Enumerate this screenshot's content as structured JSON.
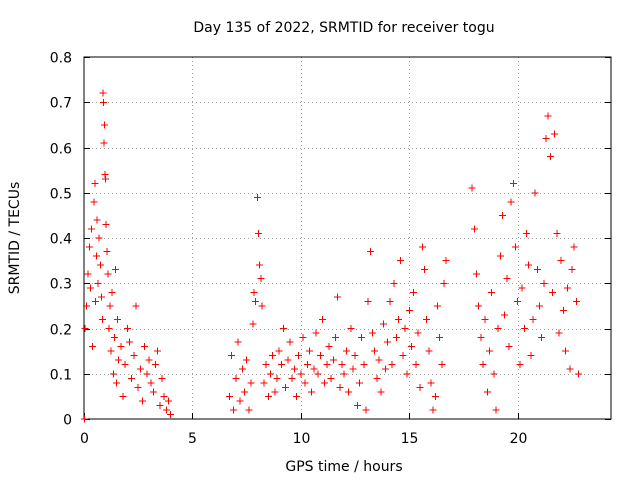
{
  "chart_data": {
    "type": "scatter",
    "title": "Day 135 of 2022, SRMTID for receiver togu",
    "xlabel": "GPS time / hours",
    "ylabel": "SRMTID / TECUs",
    "xlim": [
      0,
      24.3
    ],
    "ylim": [
      0,
      0.8
    ],
    "xticks": [
      0,
      5,
      10,
      15,
      20
    ],
    "yticks": [
      0,
      0.1,
      0.2,
      0.3,
      0.4,
      0.5,
      0.6,
      0.7,
      0.8
    ],
    "xtick_labels": [
      "0",
      "5",
      "10",
      "15",
      "20"
    ],
    "ytick_labels": [
      "0",
      "0.1",
      "0.2",
      "0.3",
      "0.4",
      "0.5",
      "0.6",
      "0.7",
      "0.8"
    ],
    "grid": true,
    "marker": "+",
    "color": "#ff0000",
    "series": [
      {
        "name": "SRMTID",
        "points": [
          [
            0.02,
            0.0
          ],
          [
            0.05,
            0.2
          ],
          [
            0.12,
            0.25
          ],
          [
            0.18,
            0.32
          ],
          [
            0.25,
            0.38
          ],
          [
            0.3,
            0.29
          ],
          [
            0.35,
            0.42
          ],
          [
            0.4,
            0.16
          ],
          [
            0.45,
            0.48
          ],
          [
            0.5,
            0.52
          ],
          [
            0.52,
            0.26
          ],
          [
            0.58,
            0.36
          ],
          [
            0.6,
            0.44
          ],
          [
            0.65,
            0.3
          ],
          [
            0.7,
            0.4
          ],
          [
            0.75,
            0.34
          ],
          [
            0.8,
            0.27
          ],
          [
            0.85,
            0.22
          ],
          [
            0.88,
            0.72
          ],
          [
            0.9,
            0.7
          ],
          [
            0.92,
            0.61
          ],
          [
            0.95,
            0.65
          ],
          [
            0.97,
            0.54
          ],
          [
            1.0,
            0.53
          ],
          [
            1.02,
            0.43
          ],
          [
            1.05,
            0.37
          ],
          [
            1.1,
            0.32
          ],
          [
            1.15,
            0.2
          ],
          [
            1.2,
            0.25
          ],
          [
            1.25,
            0.15
          ],
          [
            1.3,
            0.28
          ],
          [
            1.35,
            0.1
          ],
          [
            1.4,
            0.18
          ],
          [
            1.45,
            0.33
          ],
          [
            1.5,
            0.08
          ],
          [
            1.55,
            0.22
          ],
          [
            1.6,
            0.13
          ],
          [
            1.7,
            0.16
          ],
          [
            1.8,
            0.05
          ],
          [
            1.9,
            0.12
          ],
          [
            2.0,
            0.2
          ],
          [
            2.1,
            0.17
          ],
          [
            2.2,
            0.09
          ],
          [
            2.3,
            0.14
          ],
          [
            2.4,
            0.25
          ],
          [
            2.5,
            0.07
          ],
          [
            2.6,
            0.11
          ],
          [
            2.7,
            0.04
          ],
          [
            2.8,
            0.16
          ],
          [
            2.9,
            0.1
          ],
          [
            3.0,
            0.13
          ],
          [
            3.1,
            0.08
          ],
          [
            3.2,
            0.06
          ],
          [
            3.3,
            0.12
          ],
          [
            3.4,
            0.15
          ],
          [
            3.5,
            0.03
          ],
          [
            3.6,
            0.09
          ],
          [
            3.7,
            0.05
          ],
          [
            3.8,
            0.02
          ],
          [
            3.9,
            0.04
          ],
          [
            4.0,
            0.01
          ],
          [
            6.7,
            0.05
          ],
          [
            6.8,
            0.14
          ],
          [
            6.9,
            0.02
          ],
          [
            7.0,
            0.09
          ],
          [
            7.1,
            0.17
          ],
          [
            7.2,
            0.04
          ],
          [
            7.3,
            0.11
          ],
          [
            7.4,
            0.06
          ],
          [
            7.5,
            0.13
          ],
          [
            7.6,
            0.02
          ],
          [
            7.7,
            0.08
          ],
          [
            7.8,
            0.21
          ],
          [
            7.85,
            0.28
          ],
          [
            7.9,
            0.26
          ],
          [
            8.0,
            0.49
          ],
          [
            8.05,
            0.41
          ],
          [
            8.1,
            0.34
          ],
          [
            8.15,
            0.31
          ],
          [
            8.2,
            0.25
          ],
          [
            8.3,
            0.08
          ],
          [
            8.4,
            0.12
          ],
          [
            8.5,
            0.05
          ],
          [
            8.6,
            0.1
          ],
          [
            8.7,
            0.14
          ],
          [
            8.8,
            0.06
          ],
          [
            8.9,
            0.09
          ],
          [
            9.0,
            0.15
          ],
          [
            9.1,
            0.12
          ],
          [
            9.2,
            0.2
          ],
          [
            9.3,
            0.07
          ],
          [
            9.4,
            0.13
          ],
          [
            9.5,
            0.17
          ],
          [
            9.6,
            0.09
          ],
          [
            9.7,
            0.11
          ],
          [
            9.8,
            0.05
          ],
          [
            9.9,
            0.14
          ],
          [
            10.0,
            0.1
          ],
          [
            10.1,
            0.18
          ],
          [
            10.2,
            0.08
          ],
          [
            10.3,
            0.12
          ],
          [
            10.4,
            0.15
          ],
          [
            10.5,
            0.06
          ],
          [
            10.6,
            0.11
          ],
          [
            10.7,
            0.19
          ],
          [
            10.8,
            0.1
          ],
          [
            10.9,
            0.14
          ],
          [
            11.0,
            0.22
          ],
          [
            11.1,
            0.08
          ],
          [
            11.2,
            0.12
          ],
          [
            11.3,
            0.16
          ],
          [
            11.4,
            0.09
          ],
          [
            11.5,
            0.13
          ],
          [
            11.6,
            0.18
          ],
          [
            11.7,
            0.27
          ],
          [
            11.8,
            0.07
          ],
          [
            11.9,
            0.12
          ],
          [
            12.0,
            0.1
          ],
          [
            12.1,
            0.15
          ],
          [
            12.2,
            0.06
          ],
          [
            12.3,
            0.2
          ],
          [
            12.4,
            0.11
          ],
          [
            12.5,
            0.14
          ],
          [
            12.6,
            0.03
          ],
          [
            12.7,
            0.08
          ],
          [
            12.8,
            0.18
          ],
          [
            12.9,
            0.12
          ],
          [
            13.0,
            0.02
          ],
          [
            13.1,
            0.26
          ],
          [
            13.2,
            0.37
          ],
          [
            13.3,
            0.19
          ],
          [
            13.4,
            0.15
          ],
          [
            13.5,
            0.09
          ],
          [
            13.6,
            0.13
          ],
          [
            13.7,
            0.06
          ],
          [
            13.8,
            0.21
          ],
          [
            13.9,
            0.11
          ],
          [
            14.0,
            0.17
          ],
          [
            14.1,
            0.26
          ],
          [
            14.2,
            0.12
          ],
          [
            14.3,
            0.3
          ],
          [
            14.4,
            0.18
          ],
          [
            14.5,
            0.22
          ],
          [
            14.6,
            0.35
          ],
          [
            14.7,
            0.14
          ],
          [
            14.8,
            0.2
          ],
          [
            14.9,
            0.1
          ],
          [
            15.0,
            0.24
          ],
          [
            15.1,
            0.16
          ],
          [
            15.2,
            0.28
          ],
          [
            15.3,
            0.12
          ],
          [
            15.4,
            0.19
          ],
          [
            15.5,
            0.07
          ],
          [
            15.6,
            0.38
          ],
          [
            15.7,
            0.33
          ],
          [
            15.8,
            0.22
          ],
          [
            15.9,
            0.15
          ],
          [
            16.0,
            0.08
          ],
          [
            16.1,
            0.02
          ],
          [
            16.2,
            0.05
          ],
          [
            16.3,
            0.25
          ],
          [
            16.4,
            0.18
          ],
          [
            16.5,
            0.12
          ],
          [
            16.6,
            0.3
          ],
          [
            16.7,
            0.35
          ],
          [
            17.9,
            0.51
          ],
          [
            18.0,
            0.42
          ],
          [
            18.1,
            0.32
          ],
          [
            18.2,
            0.25
          ],
          [
            18.3,
            0.18
          ],
          [
            18.4,
            0.12
          ],
          [
            18.5,
            0.22
          ],
          [
            18.6,
            0.06
          ],
          [
            18.7,
            0.15
          ],
          [
            18.8,
            0.28
          ],
          [
            18.9,
            0.1
          ],
          [
            19.0,
            0.02
          ],
          [
            19.1,
            0.2
          ],
          [
            19.2,
            0.36
          ],
          [
            19.3,
            0.45
          ],
          [
            19.4,
            0.23
          ],
          [
            19.5,
            0.31
          ],
          [
            19.6,
            0.16
          ],
          [
            19.7,
            0.48
          ],
          [
            19.8,
            0.52
          ],
          [
            19.9,
            0.38
          ],
          [
            20.0,
            0.26
          ],
          [
            20.1,
            0.12
          ],
          [
            20.2,
            0.29
          ],
          [
            20.3,
            0.2
          ],
          [
            20.4,
            0.41
          ],
          [
            20.5,
            0.34
          ],
          [
            20.6,
            0.14
          ],
          [
            20.7,
            0.22
          ],
          [
            20.8,
            0.5
          ],
          [
            20.9,
            0.33
          ],
          [
            21.0,
            0.25
          ],
          [
            21.1,
            0.18
          ],
          [
            21.2,
            0.3
          ],
          [
            21.3,
            0.62
          ],
          [
            21.4,
            0.67
          ],
          [
            21.5,
            0.58
          ],
          [
            21.6,
            0.28
          ],
          [
            21.7,
            0.63
          ],
          [
            21.8,
            0.41
          ],
          [
            21.9,
            0.19
          ],
          [
            22.0,
            0.35
          ],
          [
            22.1,
            0.24
          ],
          [
            22.2,
            0.15
          ],
          [
            22.3,
            0.29
          ],
          [
            22.4,
            0.11
          ],
          [
            22.5,
            0.33
          ],
          [
            22.6,
            0.38
          ],
          [
            22.7,
            0.26
          ],
          [
            22.8,
            0.1
          ]
        ]
      }
    ]
  }
}
